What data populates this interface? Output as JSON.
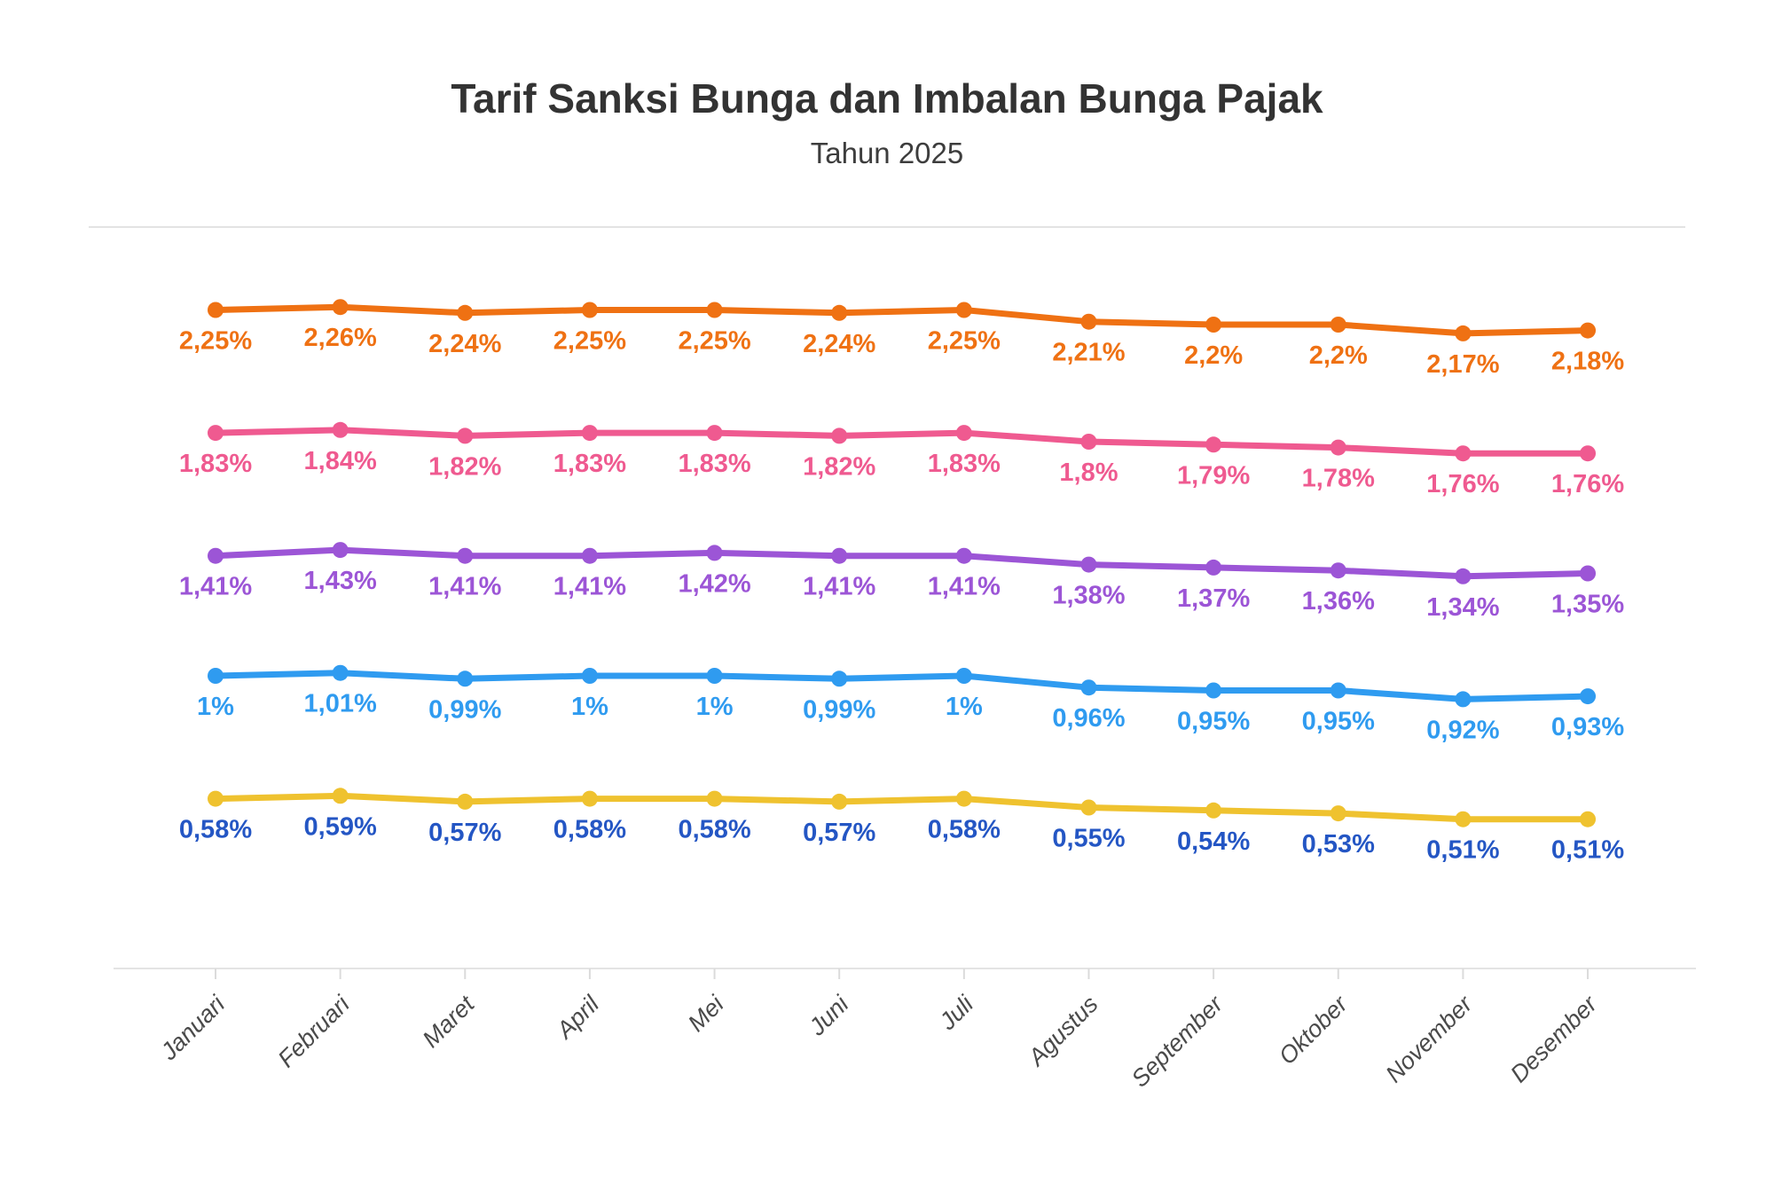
{
  "header": {
    "title": "Tarif Sanksi Bunga dan Imbalan Bunga Pajak",
    "subtitle": "Tahun 2025"
  },
  "chart_data": {
    "type": "line",
    "title": "Tarif Sanksi Bunga dan Imbalan Bunga Pajak",
    "subtitle": "Tahun 2025",
    "categories": [
      "Januari",
      "Februari",
      "Maret",
      "April",
      "Mei",
      "Juni",
      "Juli",
      "Agustus",
      "September",
      "Oktober",
      "November",
      "Desember"
    ],
    "series": [
      {
        "name": "orange-line",
        "color": "#EF7113",
        "label_color": "#EF7113",
        "values": [
          2.25,
          2.26,
          2.24,
          2.25,
          2.25,
          2.24,
          2.25,
          2.21,
          2.2,
          2.2,
          2.17,
          2.18
        ],
        "labels": [
          "2,25%",
          "2,26%",
          "2,24%",
          "2,25%",
          "2,25%",
          "2,24%",
          "2,25%",
          "2,21%",
          "2,2%",
          "2,2%",
          "2,17%",
          "2,18%"
        ]
      },
      {
        "name": "pink-line",
        "color": "#EF5A90",
        "label_color": "#EF5A90",
        "values": [
          1.83,
          1.84,
          1.82,
          1.83,
          1.83,
          1.82,
          1.83,
          1.8,
          1.79,
          1.78,
          1.76,
          1.76
        ],
        "labels": [
          "1,83%",
          "1,84%",
          "1,82%",
          "1,83%",
          "1,83%",
          "1,82%",
          "1,83%",
          "1,8%",
          "1,79%",
          "1,78%",
          "1,76%",
          "1,76%"
        ]
      },
      {
        "name": "purple-line",
        "color": "#9C55D6",
        "label_color": "#9C55D6",
        "values": [
          1.41,
          1.43,
          1.41,
          1.41,
          1.42,
          1.41,
          1.41,
          1.38,
          1.37,
          1.36,
          1.34,
          1.35
        ],
        "labels": [
          "1,41%",
          "1,43%",
          "1,41%",
          "1,41%",
          "1,42%",
          "1,41%",
          "1,41%",
          "1,38%",
          "1,37%",
          "1,36%",
          "1,34%",
          "1,35%"
        ]
      },
      {
        "name": "blue-line",
        "color": "#2F9BF0",
        "label_color": "#2F9BF0",
        "values": [
          1.0,
          1.01,
          0.99,
          1.0,
          1.0,
          0.99,
          1.0,
          0.96,
          0.95,
          0.95,
          0.92,
          0.93
        ],
        "labels": [
          "1%",
          "1,01%",
          "0,99%",
          "1%",
          "1%",
          "0,99%",
          "1%",
          "0,96%",
          "0,95%",
          "0,95%",
          "0,92%",
          "0,93%"
        ]
      },
      {
        "name": "yellow-line",
        "color": "#EFC22F",
        "label_color": "#2456C4",
        "values": [
          0.58,
          0.59,
          0.57,
          0.58,
          0.58,
          0.57,
          0.58,
          0.55,
          0.54,
          0.53,
          0.51,
          0.51
        ],
        "labels": [
          "0,58%",
          "0,59%",
          "0,57%",
          "0,58%",
          "0,58%",
          "0,57%",
          "0,58%",
          "0,55%",
          "0,54%",
          "0,53%",
          "0,51%",
          "0,51%"
        ]
      }
    ],
    "ylim": [
      0,
      2.5
    ],
    "grid": false,
    "legend": "none",
    "data_labels": true,
    "style": {
      "divider_color": "#E3E3E3",
      "axis_line_color": "#E4E4E4",
      "tick_color": "#DBDBDB",
      "x_label_color": "#4A4A4A"
    }
  }
}
